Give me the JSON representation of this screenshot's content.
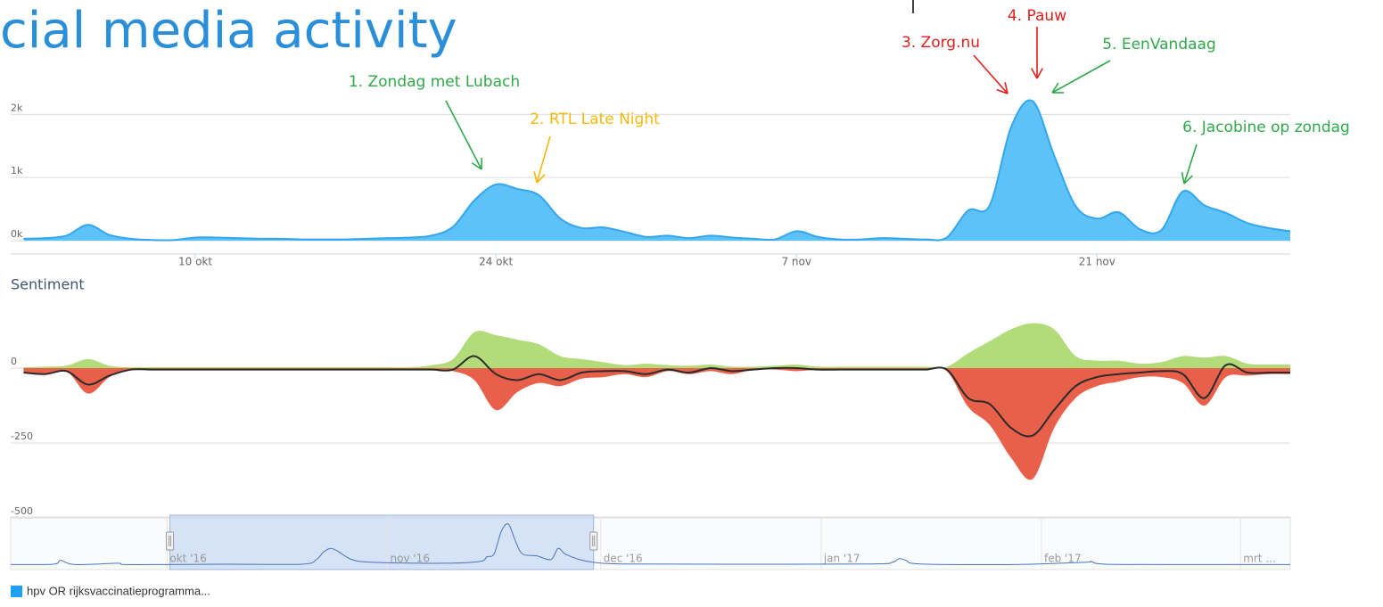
{
  "chart_data": [
    {
      "type": "area",
      "title": "cial media activity",
      "x": [
        2,
        3,
        4,
        5,
        6,
        7,
        8,
        9,
        10,
        11,
        12,
        13,
        14,
        15,
        16,
        17,
        18,
        19,
        20,
        21,
        22,
        23,
        24,
        25,
        26,
        27,
        28,
        29,
        30,
        31,
        32,
        33,
        34,
        35,
        36,
        37,
        38,
        39,
        40,
        41,
        42,
        43,
        44,
        45,
        46,
        47,
        48,
        49,
        50,
        51,
        52,
        53,
        54,
        55,
        56,
        57,
        58,
        59,
        60,
        61
      ],
      "series": [
        {
          "name": "hpv OR rijksvaccinatieprogramma...",
          "color": "#5cc2f7",
          "values": [
            30,
            40,
            80,
            250,
            90,
            30,
            10,
            10,
            50,
            50,
            40,
            30,
            30,
            20,
            20,
            20,
            30,
            40,
            50,
            80,
            220,
            640,
            890,
            820,
            720,
            350,
            200,
            210,
            140,
            60,
            80,
            40,
            80,
            50,
            30,
            20,
            150,
            60,
            20,
            20,
            40,
            30,
            20,
            50,
            480,
            560,
            1800,
            2210,
            1350,
            550,
            350,
            450,
            180,
            170,
            780,
            560,
            440,
            280,
            200,
            150
          ]
        }
      ],
      "xlim": [
        1.4,
        61
      ],
      "xticks": [
        {
          "value": 10,
          "label": "10 okt"
        },
        {
          "value": 24,
          "label": "24 okt"
        },
        {
          "value": 38,
          "label": "7 nov"
        },
        {
          "value": 52,
          "label": "21 nov"
        }
      ],
      "ylim": [
        0,
        2400
      ],
      "yticks": [
        {
          "value": 0,
          "label": "0k"
        },
        {
          "value": 1000,
          "label": "1k"
        },
        {
          "value": 2000,
          "label": "2k"
        }
      ],
      "grid": true,
      "legend": "bottom-left",
      "annotations": [
        {
          "text": "1. Zondag met Lubach",
          "color": "#2fa84a"
        },
        {
          "text": "2. RTL Late Night",
          "color": "#f3b90c"
        },
        {
          "text": "3. Zorg.nu",
          "color": "#e0201c"
        },
        {
          "text": "4. Pauw",
          "color": "#e0201c"
        },
        {
          "text": "5. EenVandaag",
          "color": "#2fa84a"
        },
        {
          "text": "6. Jacobine op zondag",
          "color": "#2fa84a"
        }
      ]
    },
    {
      "type": "area",
      "title": "Sentiment",
      "x": [
        2,
        3,
        4,
        5,
        6,
        7,
        8,
        9,
        10,
        11,
        12,
        13,
        14,
        15,
        16,
        17,
        18,
        19,
        20,
        21,
        22,
        23,
        24,
        25,
        26,
        27,
        28,
        29,
        30,
        31,
        32,
        33,
        34,
        35,
        36,
        37,
        38,
        39,
        40,
        41,
        42,
        43,
        44,
        45,
        46,
        47,
        48,
        49,
        50,
        51,
        52,
        53,
        54,
        55,
        56,
        57,
        58,
        59,
        60,
        61
      ],
      "series": [
        {
          "type": "area",
          "color": "#b2db7a",
          "values": [
            3,
            5,
            8,
            30,
            8,
            3,
            3,
            3,
            3,
            3,
            3,
            3,
            3,
            3,
            3,
            3,
            3,
            3,
            3,
            10,
            30,
            120,
            110,
            95,
            80,
            40,
            30,
            20,
            10,
            15,
            10,
            8,
            12,
            5,
            5,
            8,
            12,
            5,
            5,
            5,
            5,
            5,
            5,
            5,
            50,
            90,
            130,
            150,
            130,
            40,
            25,
            25,
            15,
            20,
            40,
            35,
            40,
            15,
            12,
            12
          ]
        },
        {
          "type": "area",
          "color": "#e8604a",
          "values": [
            -15,
            -20,
            -10,
            -85,
            -30,
            -5,
            -5,
            -5,
            -5,
            -5,
            -5,
            -5,
            -5,
            -5,
            -5,
            -5,
            -5,
            -5,
            -5,
            -5,
            -10,
            -40,
            -140,
            -80,
            -50,
            -60,
            -35,
            -30,
            -20,
            -30,
            -10,
            -20,
            -10,
            -20,
            -5,
            -5,
            -10,
            -5,
            -5,
            -5,
            -5,
            -5,
            -5,
            -10,
            -130,
            -190,
            -300,
            -370,
            -200,
            -100,
            -60,
            -45,
            -30,
            -30,
            -50,
            -125,
            -30,
            -25,
            -20,
            -20
          ]
        },
        {
          "type": "line",
          "color": "#2b2b2b",
          "values": [
            -15,
            -20,
            -10,
            -55,
            -25,
            -5,
            -5,
            -5,
            -5,
            -5,
            -5,
            -5,
            -5,
            -5,
            -5,
            -5,
            -5,
            -5,
            -5,
            -5,
            -5,
            40,
            -20,
            -40,
            -20,
            -40,
            -15,
            -10,
            -10,
            -20,
            -5,
            -15,
            0,
            -10,
            -5,
            0,
            0,
            -5,
            -5,
            -5,
            -5,
            -5,
            -5,
            -5,
            -100,
            -120,
            -200,
            -225,
            -140,
            -60,
            -30,
            -20,
            -15,
            -10,
            -20,
            -100,
            10,
            -15,
            -15,
            -15
          ]
        }
      ],
      "xlim": [
        1.4,
        61
      ],
      "ylim": [
        -500,
        250
      ],
      "yticks": [
        0,
        -250,
        -500
      ],
      "grid": true
    },
    {
      "type": "line",
      "x": [
        -21,
        -15,
        -14,
        -12,
        -6,
        -5,
        1,
        10,
        20,
        22,
        23,
        24,
        25,
        27,
        30,
        40,
        45,
        46,
        47,
        48,
        49,
        50,
        51,
        53,
        55,
        56,
        57,
        59,
        61,
        65,
        80,
        100,
        103,
        104,
        105,
        107,
        120,
        130,
        131,
        133,
        145,
        159
      ],
      "series": [
        {
          "color": "#4a76b8",
          "values": [
            30,
            50,
            250,
            30,
            100,
            30,
            30,
            50,
            50,
            300,
            700,
            900,
            750,
            300,
            150,
            100,
            200,
            450,
            600,
            1800,
            2210,
            1300,
            600,
            500,
            300,
            900,
            600,
            300,
            150,
            60,
            50,
            60,
            150,
            350,
            250,
            60,
            30,
            150,
            200,
            50,
            30,
            30
          ]
        }
      ],
      "xlim": [
        -21,
        159
      ],
      "xticks": [
        {
          "value": 1,
          "label": "okt '16"
        },
        {
          "value": 32,
          "label": "nov '16"
        },
        {
          "value": 62,
          "label": "dec '16"
        },
        {
          "value": 93,
          "label": "jan '17"
        },
        {
          "value": 124,
          "label": "feb '17"
        },
        {
          "value": 152,
          "label": "mrt ..."
        }
      ],
      "ylim": [
        0,
        2400
      ],
      "selection": [
        1.4,
        61
      ],
      "selection_color": "#cddcf3",
      "grid": true
    }
  ]
}
